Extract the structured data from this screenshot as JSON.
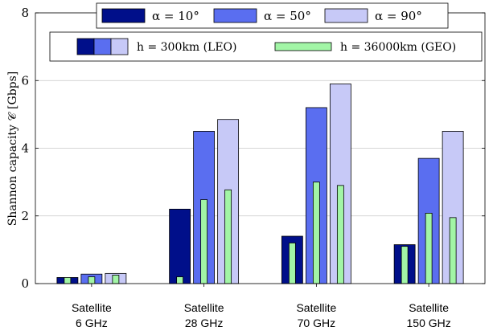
{
  "chart_data": {
    "type": "bar",
    "ylabel": "Shannon capacity 𝒞 [Gbps]",
    "ylim": [
      0,
      8
    ],
    "yticks": [
      0,
      2,
      4,
      6,
      8
    ],
    "grid": "horizontal",
    "legend_position": "top",
    "categories": [
      {
        "line1": "Satellite",
        "line2": "6 GHz"
      },
      {
        "line1": "Satellite",
        "line2": "28 GHz"
      },
      {
        "line1": "Satellite",
        "line2": "70 GHz"
      },
      {
        "line1": "Satellite",
        "line2": "150 GHz"
      }
    ],
    "series": [
      {
        "name": "α = 10°",
        "alpha": "10",
        "orbit": "LEO",
        "color": "#000f8a",
        "values": [
          0.18,
          2.2,
          1.4,
          1.15
        ]
      },
      {
        "name": "α = 50°",
        "alpha": "50",
        "orbit": "LEO",
        "color": "#5a6ef0",
        "values": [
          0.28,
          4.5,
          5.2,
          3.7
        ]
      },
      {
        "name": "α = 90°",
        "alpha": "90",
        "orbit": "LEO",
        "color": "#c7c9f7",
        "values": [
          0.3,
          4.85,
          5.9,
          4.5
        ]
      },
      {
        "name": "α = 10°",
        "alpha": "10",
        "orbit": "GEO",
        "color": "#a2f5a6",
        "values": [
          0.18,
          0.2,
          1.2,
          1.1
        ]
      },
      {
        "name": "α = 50°",
        "alpha": "50",
        "orbit": "GEO",
        "color": "#a2f5a6",
        "values": [
          0.2,
          2.48,
          3.0,
          2.08
        ]
      },
      {
        "name": "α = 90°",
        "alpha": "90",
        "orbit": "GEO",
        "color": "#a2f5a6",
        "values": [
          0.25,
          2.77,
          2.9,
          1.95
        ]
      }
    ],
    "legend": {
      "alpha_entries": [
        {
          "label": "α = 10°",
          "color": "#000f8a"
        },
        {
          "label": "α = 50°",
          "color": "#5a6ef0"
        },
        {
          "label": "α = 90°",
          "color": "#c7c9f7"
        }
      ],
      "orbit_entries": [
        {
          "label": "h = 300km (LEO)"
        },
        {
          "label": "h = 36000km (GEO)",
          "color": "#a2f5a6"
        }
      ]
    }
  }
}
